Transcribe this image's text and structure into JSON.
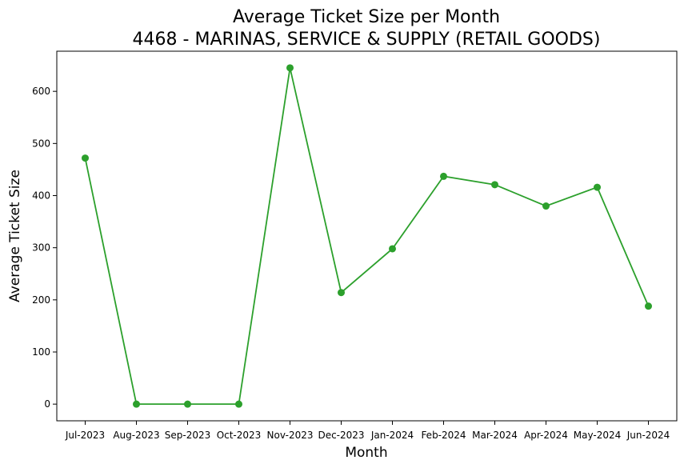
{
  "chart_data": {
    "type": "line",
    "title": "Average Ticket Size per Month",
    "subtitle": "4468 - MARINAS, SERVICE & SUPPLY (RETAIL GOODS)",
    "xlabel": "Month",
    "ylabel": "Average Ticket Size",
    "categories": [
      "Jul-2023",
      "Aug-2023",
      "Sep-2023",
      "Oct-2023",
      "Nov-2023",
      "Dec-2023",
      "Jan-2024",
      "Feb-2024",
      "Mar-2024",
      "Apr-2024",
      "May-2024",
      "Jun-2024"
    ],
    "values": [
      472,
      0,
      0,
      0,
      645,
      214,
      298,
      437,
      421,
      380,
      416,
      188
    ],
    "ylim": [
      -32,
      677
    ],
    "yticks": [
      0,
      100,
      200,
      300,
      400,
      500,
      600
    ],
    "grid": false,
    "line_color": "#2ca02c"
  }
}
